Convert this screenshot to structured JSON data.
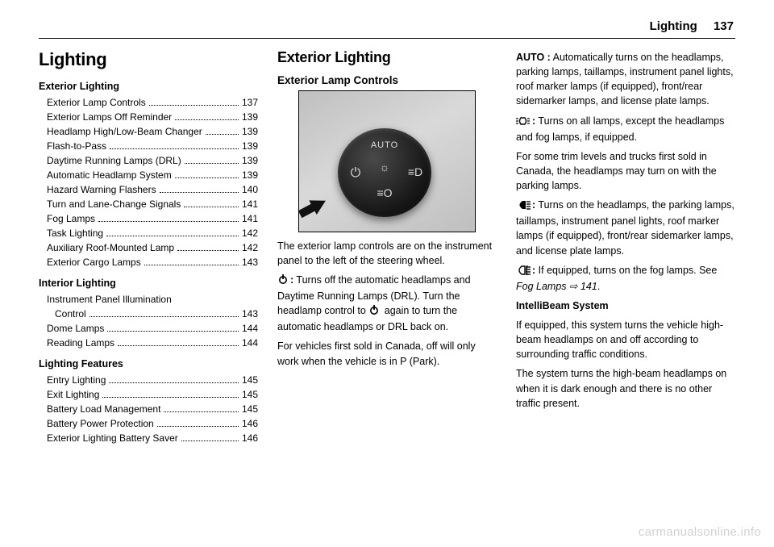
{
  "header": {
    "section": "Lighting",
    "page": "137"
  },
  "col1": {
    "title": "Lighting",
    "groups": [
      {
        "heading": "Exterior Lighting",
        "items": [
          {
            "label": "Exterior Lamp Controls",
            "page": "137"
          },
          {
            "label": "Exterior Lamps Off Reminder",
            "page": "139"
          },
          {
            "label": "Headlamp High/Low-Beam Changer",
            "page": "139"
          },
          {
            "label": "Flash-to-Pass",
            "page": "139"
          },
          {
            "label": "Daytime Running Lamps (DRL)",
            "page": "139"
          },
          {
            "label": "Automatic Headlamp System",
            "page": "139"
          },
          {
            "label": "Hazard Warning Flashers",
            "page": "140"
          },
          {
            "label": "Turn and Lane-Change Signals",
            "page": "141"
          },
          {
            "label": "Fog Lamps",
            "page": "141"
          },
          {
            "label": "Task Lighting",
            "page": "142"
          },
          {
            "label": "Auxiliary Roof-Mounted Lamp",
            "page": "142"
          },
          {
            "label": "Exterior Cargo Lamps",
            "page": "143"
          }
        ]
      },
      {
        "heading": "Interior Lighting",
        "items": [
          {
            "label": "Instrument Panel Illumination",
            "label2": "Control",
            "page": "143",
            "wrap": true
          },
          {
            "label": "Dome Lamps",
            "page": "144"
          },
          {
            "label": "Reading Lamps",
            "page": "144"
          }
        ]
      },
      {
        "heading": "Lighting Features",
        "items": [
          {
            "label": "Entry Lighting",
            "page": "145"
          },
          {
            "label": "Exit Lighting",
            "page": "145"
          },
          {
            "label": "Battery Load Management",
            "page": "145"
          },
          {
            "label": "Battery Power Protection",
            "page": "146"
          },
          {
            "label": "Exterior Lighting Battery Saver",
            "page": "146"
          }
        ]
      }
    ]
  },
  "col2": {
    "h2": "Exterior Lighting",
    "h3": "Exterior Lamp Controls",
    "dial_label": "AUTO",
    "p1": "The exterior lamp controls are on the instrument panel to the left of the steering wheel.",
    "off_text": "Turns off the automatic headlamps and Daytime Running Lamps (DRL). Turn the headlamp control to ",
    "off_text2": " again to turn the automatic headlamps or DRL back on.",
    "p3": "For vehicles first sold in Canada, off will only work when the vehicle is in P (Park)."
  },
  "col3": {
    "auto_label": "AUTO :",
    "auto_text": " Automatically turns on the headlamps, parking lamps, taillamps, instrument panel lights, roof marker lamps (if equipped), front/rear sidemarker lamps, and license plate lamps.",
    "park_text": "Turns on all lamps, except the headlamps and fog lamps, if equipped.",
    "park_note": "For some trim levels and trucks first sold in Canada, the headlamps may turn on with the parking lamps.",
    "head_text": "Turns on the headlamps, the parking lamps, taillamps, instrument panel lights, roof marker lamps (if equipped), front/rear sidemarker lamps, and license plate lamps.",
    "fog_text": "If equipped, turns on the fog lamps. See ",
    "fog_xref": "Fog Lamps ⇨ 141",
    "fog_text_end": ".",
    "ib_h": "IntelliBeam System",
    "ib_p1": "If equipped, this system turns the vehicle high-beam headlamps on and off according to surrounding traffic conditions.",
    "ib_p2": "The system turns the high-beam headlamps on when it is dark enough and there is no other traffic present."
  },
  "watermark": "carmanualsonline.info",
  "glyphs": {
    "off_svg": "<svg width='14' height='14' viewBox='0 0 14 14'><circle cx='7' cy='8' r='4.2' fill='none' stroke='#000' stroke-width='1.6'/><line x1='7' y1='1' x2='7' y2='7' stroke='#000' stroke-width='1.8'/></svg>",
    "park_svg": "<svg width='18' height='12' viewBox='0 0 18 12'><g stroke='#000' stroke-width='1.4' fill='none'><path d='M6 2 Q3 6 6 10 L11 10 Q14 6 11 2 Z'/></g><g stroke='#000' stroke-width='1.2'><line x1='0' y1='3' x2='3' y2='3'/><line x1='0' y1='6' x2='3' y2='6'/><line x1='0' y1='9' x2='3' y2='9'/><line x1='14' y1='3' x2='17' y2='3'/><line x1='14' y1='6' x2='17' y2='6'/><line x1='14' y1='9' x2='17' y2='9'/></g></svg>",
    "head_svg": "<svg width='18' height='12' viewBox='0 0 18 12'><path d='M8 1 Q1 6 8 11 L12 11 L12 1 Z' fill='#000'/><g stroke='#000' stroke-width='1.4'><line x1='13' y1='2' x2='18' y2='2'/><line x1='13' y1='5' x2='18' y2='5'/><line x1='13' y1='8' x2='18' y2='8'/><line x1='13' y1='11' x2='18' y2='11'/></g></svg>",
    "fog_svg": "<svg width='18' height='12' viewBox='0 0 18 12'><path d='M7 1 Q1 6 7 11 L11 11 L11 1 Z' fill='none' stroke='#000' stroke-width='1.4'/><g stroke='#000' stroke-width='1.4'><line x1='12' y1='2' x2='18' y2='2'/><line x1='12' y1='5' x2='18' y2='5'/><line x1='12' y1='8' x2='18' y2='8'/><line x1='12' y1='11' x2='18' y2='11'/></g><path d='M14 0 Q12 6 14 12' fill='none' stroke='#000' stroke-width='1.4'/></svg>"
  }
}
